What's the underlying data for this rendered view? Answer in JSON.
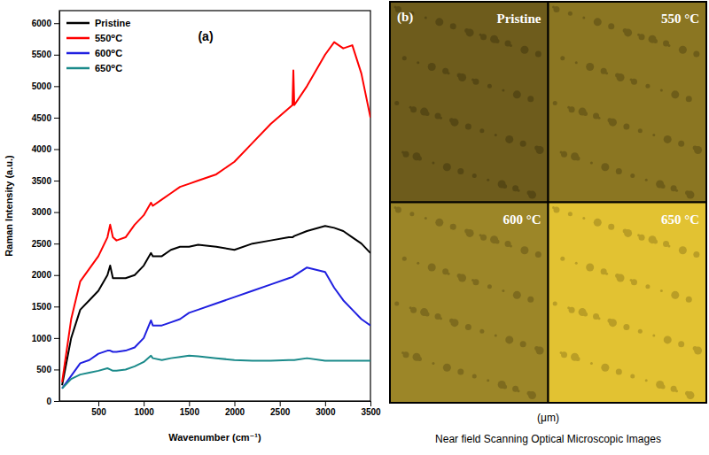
{
  "chart_data": {
    "type": "line",
    "title": "(a)",
    "x_label": "Wavenumber (cm⁻¹)",
    "y_label": "Raman Intensity (a.u.)",
    "x": [
      100,
      200,
      300,
      400,
      500,
      600,
      630,
      660,
      700,
      800,
      900,
      1000,
      1080,
      1100,
      1200,
      1300,
      1400,
      1500,
      1600,
      1800,
      2000,
      2200,
      2400,
      2600,
      2640,
      2650,
      2660,
      2800,
      3000,
      3100,
      3200,
      3300,
      3400,
      3500
    ],
    "series": [
      {
        "name": "Pristine",
        "color": "#000000",
        "values": [
          250,
          1000,
          1450,
          1600,
          1750,
          2000,
          2150,
          1950,
          1950,
          1950,
          2000,
          2150,
          2350,
          2300,
          2300,
          2400,
          2450,
          2450,
          2480,
          2450,
          2400,
          2500,
          2550,
          2600,
          2600,
          2610,
          2620,
          2700,
          2780,
          2750,
          2700,
          2600,
          2500,
          2350
        ]
      },
      {
        "name": "550⁰C",
        "color": "#ff0000",
        "values": [
          300,
          1300,
          1900,
          2100,
          2300,
          2600,
          2800,
          2600,
          2550,
          2600,
          2800,
          2950,
          3150,
          3100,
          3200,
          3300,
          3400,
          3450,
          3500,
          3600,
          3800,
          4100,
          4400,
          4650,
          4700,
          5250,
          4700,
          5000,
          5500,
          5700,
          5600,
          5650,
          5200,
          4500
        ]
      },
      {
        "name": "600⁰C",
        "color": "#2020e0",
        "values": [
          200,
          400,
          600,
          650,
          750,
          800,
          800,
          780,
          780,
          800,
          850,
          1000,
          1280,
          1200,
          1200,
          1250,
          1300,
          1400,
          1450,
          1550,
          1650,
          1750,
          1850,
          1950,
          1970,
          1980,
          1990,
          2120,
          2050,
          1800,
          1600,
          1450,
          1300,
          1200
        ]
      },
      {
        "name": "650⁰C",
        "color": "#1a8a8a",
        "values": [
          200,
          350,
          420,
          450,
          480,
          520,
          500,
          480,
          480,
          500,
          550,
          620,
          720,
          680,
          650,
          680,
          700,
          720,
          710,
          680,
          650,
          640,
          640,
          650,
          650,
          650,
          650,
          680,
          640,
          640,
          640,
          640,
          640,
          640
        ]
      }
    ],
    "xlim": [
      70,
      3500
    ],
    "xticks": [
      500,
      1000,
      1500,
      2000,
      2500,
      3000,
      3500
    ],
    "ylim": [
      0,
      6200
    ],
    "yticks": [
      0,
      500,
      1000,
      1500,
      2000,
      2500,
      3000,
      3500,
      4000,
      4500,
      5000,
      5500,
      6000
    ],
    "legend": "top left",
    "grid": false
  },
  "images": {
    "label": "(b)",
    "panels": [
      {
        "label": "Pristine"
      },
      {
        "label": "550 °C"
      },
      {
        "label": "600 °C"
      },
      {
        "label": "650 °C"
      }
    ],
    "unit": "(μm)",
    "caption": "Near field Scanning Optical Microscopic Images"
  }
}
